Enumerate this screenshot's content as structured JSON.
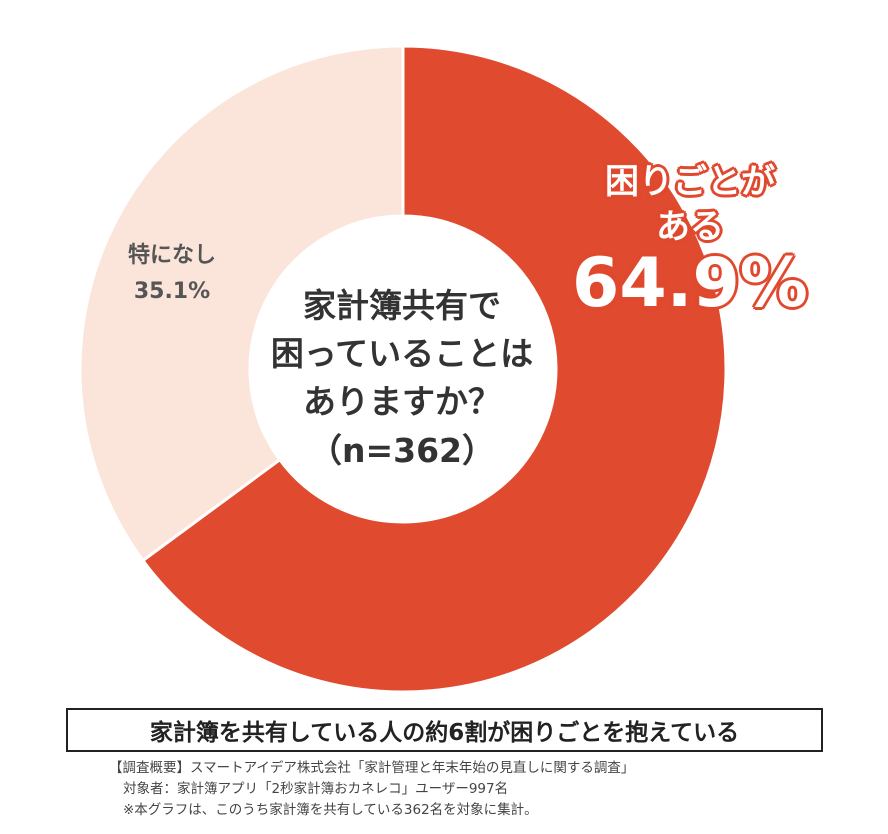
{
  "chart_data": {
    "type": "pie",
    "subtype": "donut",
    "start_angle_deg": 0,
    "direction": "clockwise",
    "slices": [
      {
        "label_line1": "困りごとが",
        "label_line2": "ある",
        "value": 64.9,
        "value_text": "64.9%",
        "color": "#e04a2f"
      },
      {
        "label": "特になし",
        "value": 35.1,
        "value_text": "35.1%",
        "color": "#fbe5da"
      }
    ],
    "center_text": [
      "家計簿共有で",
      "困っていることは",
      "ありますか？"
    ],
    "center_n": "（n=362）"
  },
  "banner": "家計簿を共有している人の約6割が困りごとを抱えている",
  "notes": [
    "【調査概要】スマートアイデア株式会社「家計管理と年末年始の見直しに関する調査」",
    "対象者：家計簿アプリ「2秒家計簿おカネレコ」ユーザー997名",
    "※本グラフは、このうち家計簿を共有している362名を対象に集計。"
  ]
}
